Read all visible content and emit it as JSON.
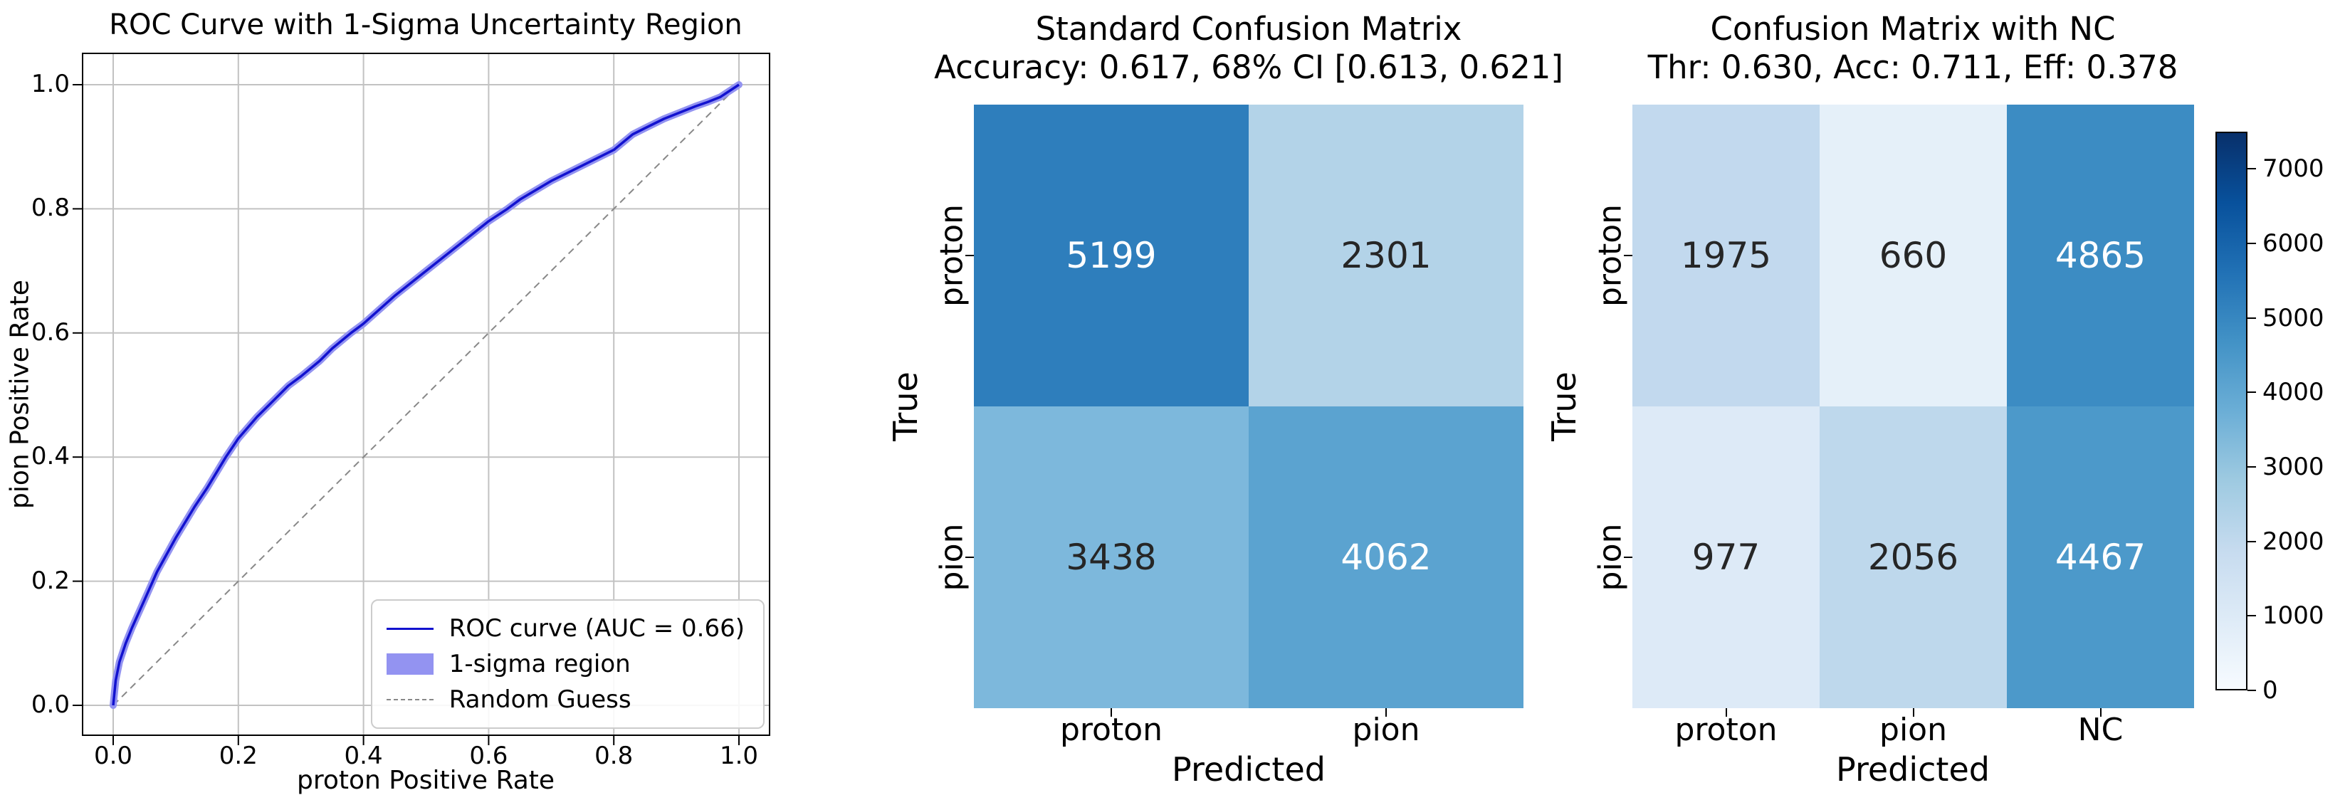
{
  "colors": {
    "roc_line": "#1212cf",
    "roc_band": "#9393f1",
    "diagonal": "#888888",
    "grid": "#c2c2c2",
    "spine": "#000000",
    "cell_text_light": "#ffffff",
    "cell_text_dark": "#262626",
    "blues_stops": [
      "#f7fbff",
      "#deebf7",
      "#c6dbef",
      "#9ecae1",
      "#6baed6",
      "#4292c6",
      "#2171b5",
      "#08519c",
      "#08306b"
    ]
  },
  "roc_plot": {
    "title": "ROC Curve with 1-Sigma Uncertainty Region",
    "xlabel": "proton Positive Rate",
    "ylabel": "pion Positive Rate",
    "xticks": [
      "0.0",
      "0.2",
      "0.4",
      "0.6",
      "0.8",
      "1.0"
    ],
    "yticks": [
      "0.0",
      "0.2",
      "0.4",
      "0.6",
      "0.8",
      "1.0"
    ],
    "legend": [
      {
        "label": "ROC curve (AUC = 0.66)",
        "glyph": "line"
      },
      {
        "label": "1-sigma region",
        "glyph": "patch"
      },
      {
        "label": "Random Guess",
        "glyph": "dashed"
      }
    ]
  },
  "matrix_std": {
    "title": "Standard Confusion Matrix",
    "subtitle": "Accuracy: 0.617, 68% CI [0.613, 0.621]",
    "xlabel": "Predicted",
    "ylabel": "True",
    "col_labels": [
      "proton",
      "pion"
    ],
    "row_labels": [
      "proton",
      "pion"
    ],
    "cells": [
      [
        {
          "value": "5199",
          "bg": "#2e7ebc",
          "fg": "#ffffff"
        },
        {
          "value": "2301",
          "bg": "#b3d3e8",
          "fg": "#262626"
        }
      ],
      [
        {
          "value": "3438",
          "bg": "#7db8dc",
          "fg": "#262626"
        },
        {
          "value": "4062",
          "bg": "#5ba3d0",
          "fg": "#ffffff"
        }
      ]
    ]
  },
  "matrix_nc": {
    "title": "Confusion Matrix with NC",
    "subtitle": "Thr: 0.630, Acc: 0.711, Eff: 0.378",
    "xlabel": "Predicted",
    "ylabel": "True",
    "col_labels": [
      "proton",
      "pion",
      "NC"
    ],
    "row_labels": [
      "proton",
      "pion"
    ],
    "cells": [
      [
        {
          "value": "1975",
          "bg": "#c2d9ee",
          "fg": "#262626"
        },
        {
          "value": "660",
          "bg": "#e5f0f9",
          "fg": "#262626"
        },
        {
          "value": "4865",
          "bg": "#3c8cc3",
          "fg": "#ffffff"
        }
      ],
      [
        {
          "value": "977",
          "bg": "#ddeaf7",
          "fg": "#262626"
        },
        {
          "value": "2056",
          "bg": "#bed8ec",
          "fg": "#262626"
        },
        {
          "value": "4467",
          "bg": "#4c99ca",
          "fg": "#ffffff"
        }
      ]
    ]
  },
  "colorbar": {
    "ticks": [
      "0",
      "1000",
      "2000",
      "3000",
      "4000",
      "5000",
      "6000",
      "7000"
    ],
    "vmin": 0,
    "vmax": 7500
  },
  "chart_data": [
    {
      "type": "line",
      "title": "ROC Curve with 1-Sigma Uncertainty Region",
      "xlabel": "proton Positive Rate",
      "ylabel": "pion Positive Rate",
      "xlim": [
        -0.05,
        1.05
      ],
      "ylim": [
        -0.05,
        1.05
      ],
      "xticks": [
        0,
        0.2,
        0.4,
        0.6,
        0.8,
        1.0
      ],
      "yticks": [
        0,
        0.2,
        0.4,
        0.6,
        0.8,
        1.0
      ],
      "grid": true,
      "legend_position": "lower right",
      "auc": 0.66,
      "series": [
        {
          "name": "ROC curve (AUC = 0.66)",
          "style": "solid",
          "x": [
            0,
            0.004,
            0.01,
            0.02,
            0.03,
            0.05,
            0.07,
            0.1,
            0.13,
            0.15,
            0.18,
            0.2,
            0.23,
            0.25,
            0.28,
            0.3,
            0.33,
            0.35,
            0.38,
            0.4,
            0.45,
            0.5,
            0.55,
            0.6,
            0.63,
            0.65,
            0.7,
            0.75,
            0.8,
            0.83,
            0.85,
            0.88,
            0.9,
            0.93,
            0.95,
            0.97,
            1.0
          ],
          "y": [
            0,
            0.04,
            0.07,
            0.1,
            0.125,
            0.17,
            0.215,
            0.27,
            0.32,
            0.35,
            0.4,
            0.43,
            0.465,
            0.485,
            0.515,
            0.53,
            0.555,
            0.575,
            0.6,
            0.615,
            0.66,
            0.7,
            0.74,
            0.78,
            0.8,
            0.815,
            0.845,
            0.87,
            0.895,
            0.92,
            0.93,
            0.945,
            0.953,
            0.965,
            0.972,
            0.98,
            1.0
          ]
        },
        {
          "name": "1-sigma region",
          "style": "band",
          "band_halfwidth": 0.006
        },
        {
          "name": "Random Guess",
          "style": "dashed",
          "x": [
            0,
            1
          ],
          "y": [
            0,
            1
          ]
        }
      ]
    },
    {
      "type": "heatmap",
      "title": "Standard Confusion Matrix",
      "subtitle": "Accuracy: 0.617, 68% CI [0.613, 0.621]",
      "xlabel": "Predicted",
      "ylabel": "True",
      "x_categories": [
        "proton",
        "pion"
      ],
      "y_categories": [
        "proton",
        "pion"
      ],
      "values": [
        [
          5199,
          2301
        ],
        [
          3438,
          4062
        ]
      ],
      "colormap": "Blues",
      "vmin": 0,
      "vmax": 7500
    },
    {
      "type": "heatmap",
      "title": "Confusion Matrix with NC",
      "subtitle": "Thr: 0.630, Acc: 0.711, Eff: 0.378",
      "xlabel": "Predicted",
      "ylabel": "True",
      "x_categories": [
        "proton",
        "pion",
        "NC"
      ],
      "y_categories": [
        "proton",
        "pion"
      ],
      "values": [
        [
          1975,
          660,
          4865
        ],
        [
          977,
          2056,
          4467
        ]
      ],
      "colormap": "Blues",
      "vmin": 0,
      "vmax": 7500,
      "colorbar_ticks": [
        0,
        1000,
        2000,
        3000,
        4000,
        5000,
        6000,
        7000
      ]
    }
  ]
}
